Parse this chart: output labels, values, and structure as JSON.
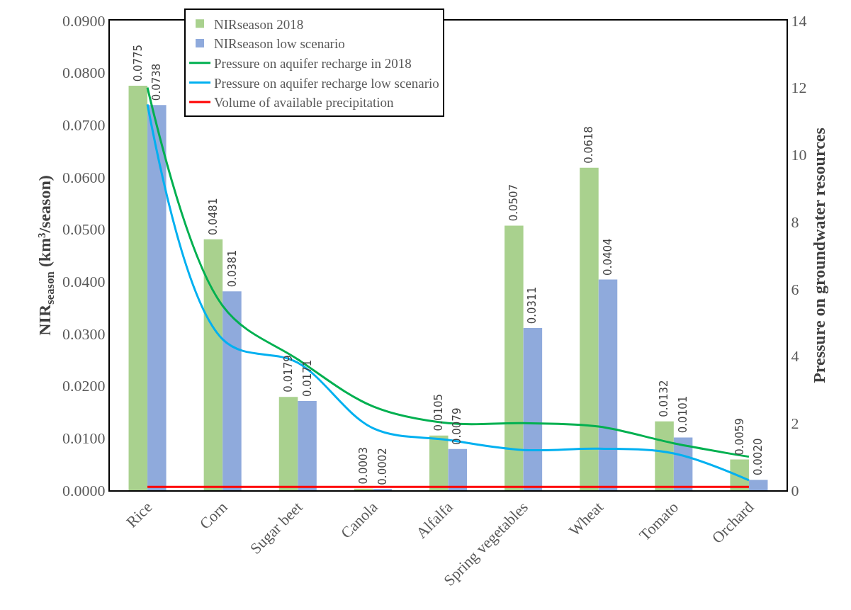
{
  "chart_data": {
    "type": "bar",
    "categories": [
      "Rice",
      "Corn",
      "Sugar beet",
      "Canola",
      "Alfalfa",
      "Spring vegetables",
      "Wheat",
      "Tomato",
      "Orchard"
    ],
    "ylabel": "NIR$_{season}$ (km³/season)",
    "y2label": "Pressure on groundwater resources",
    "ylim": [
      0,
      0.09
    ],
    "yticks": [
      {
        "value": 0,
        "label": "0.0000"
      },
      {
        "value": 0.01,
        "label": "0.0100"
      },
      {
        "value": 0.02,
        "label": "0.0200"
      },
      {
        "value": 0.03,
        "label": "0.0300"
      },
      {
        "value": 0.04,
        "label": "0.0400"
      },
      {
        "value": 0.05,
        "label": "0.0500"
      },
      {
        "value": 0.06,
        "label": "0.0600"
      },
      {
        "value": 0.07,
        "label": "0.0700"
      },
      {
        "value": 0.08,
        "label": "0.0800"
      },
      {
        "value": 0.09,
        "label": "0.0900"
      }
    ],
    "y2lim": [
      0,
      14
    ],
    "y2ticks": [
      0,
      2,
      4,
      6,
      8,
      10,
      12,
      14
    ],
    "grid": false,
    "legend": "top",
    "marker": "none",
    "line_style": "solid",
    "series": [
      {
        "name": "NIRseason 2018",
        "color": "#a9d18e",
        "values": [
          0.0775,
          0.0481,
          0.0179,
          0.0003,
          0.0105,
          0.0507,
          0.0618,
          0.0132,
          0.0059
        ],
        "value_labels": [
          "0.0775",
          "0.0481",
          "0.0179",
          "0.0003",
          "0.0105",
          "0.0507",
          "0.0618",
          "0.0132",
          "0.0059"
        ]
      },
      {
        "name": "NIRseason low scenario",
        "color": "#8faadc",
        "values": [
          0.0738,
          0.0381,
          0.0171,
          0.0002,
          0.0079,
          0.0311,
          0.0404,
          0.0101,
          0.002
        ],
        "value_labels": [
          "0.0738",
          "0.0381",
          "0.0171",
          "0.0002",
          "0.0079",
          "0.0311",
          "0.0404",
          "0.0101",
          "0.0020"
        ]
      },
      {
        "name": "Pressure on aquifer recharge in 2018",
        "type": "line",
        "axis": "y2",
        "color": "#00b050",
        "values": [
          12.0,
          5.5,
          3.9,
          2.5,
          2.0,
          2.0,
          1.9,
          1.4,
          1.0
        ]
      },
      {
        "name": "Pressure on aquifer recharge low scenario",
        "type": "line",
        "axis": "y2",
        "color": "#00b0f0",
        "values": [
          11.5,
          4.5,
          3.8,
          1.85,
          1.5,
          1.2,
          1.24,
          1.1,
          0.3
        ]
      },
      {
        "name": "Volume of available precipitation",
        "type": "line",
        "axis": "y2",
        "color": "#ff0000",
        "values": [
          0.1,
          0.1,
          0.1,
          0.1,
          0.1,
          0.1,
          0.1,
          0.1,
          0.1
        ]
      }
    ]
  }
}
